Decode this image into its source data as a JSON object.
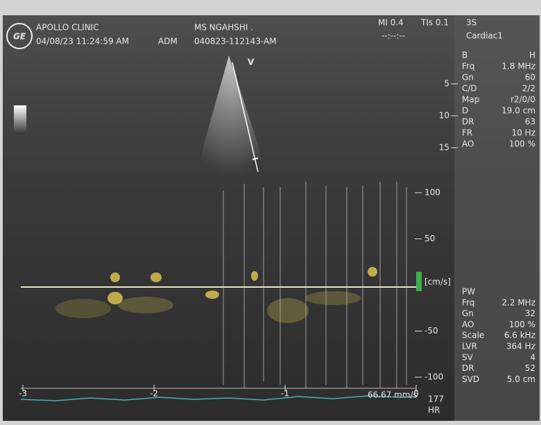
{
  "header": {
    "logo": "GE",
    "clinic": "APOLLO CLINIC",
    "datetime": "04/08/23 11:24:59 AM",
    "operator": "ADM",
    "patient": "MS NGAHSHI .",
    "exam_id": "040823-112143-AM",
    "mi": "MI 0.4",
    "tis": "TIs 0.1",
    "probe": "3S",
    "preset": "Cardiac1",
    "timer": "--:--:--"
  },
  "bmode": {
    "marker": "V",
    "depth_ticks": [
      5,
      10,
      15
    ],
    "params": [
      [
        "B",
        "H"
      ],
      [
        "Frq",
        "1.8 MHz"
      ],
      [
        "Gn",
        "60"
      ],
      [
        "C/D",
        "2/2"
      ],
      [
        "Map",
        "r2/0/0"
      ],
      [
        "D",
        "19.0 cm"
      ],
      [
        "DR",
        "63"
      ],
      [
        "FR",
        "10 Hz"
      ],
      [
        "AO",
        "100 %"
      ]
    ]
  },
  "doppler": {
    "scale_ticks": [
      100,
      50,
      -50,
      -100
    ],
    "unit": "[cm/s]",
    "time_ticks": [
      -3,
      -2,
      -1,
      0
    ],
    "sweep": "66.67 mm/s",
    "hr_value": "177",
    "hr_label": "HR",
    "params": [
      [
        "PW",
        ""
      ],
      [
        "Frq",
        "2.2 MHz"
      ],
      [
        "Gn",
        "32"
      ],
      [
        "AO",
        "100 %"
      ],
      [
        "Scale",
        "6.6 kHz"
      ],
      [
        "LVR",
        "364 Hz"
      ],
      [
        "SV",
        "4"
      ],
      [
        "DR",
        "52"
      ],
      [
        "SVD",
        "5.0 cm"
      ]
    ]
  }
}
